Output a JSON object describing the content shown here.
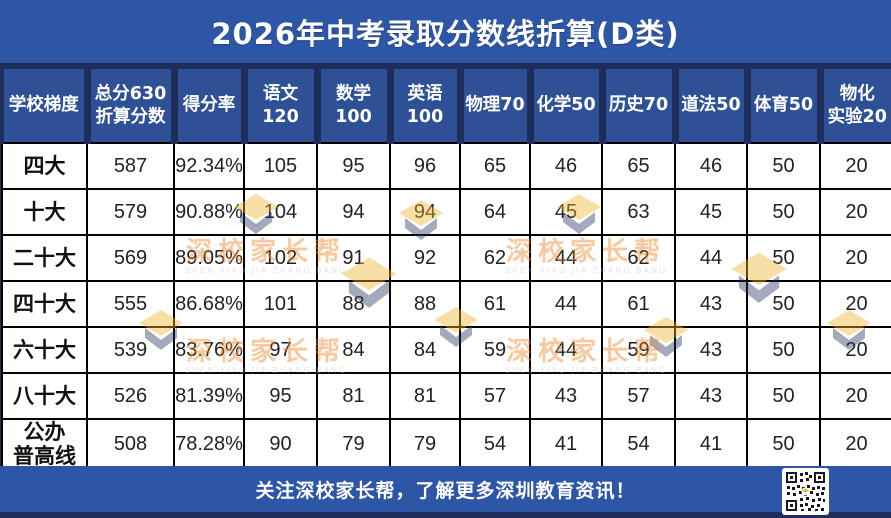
{
  "title": "2026年中考录取分数线折算(D类)",
  "table": {
    "columns": [
      "学校梯度",
      "总分630\n折算分数",
      "得分率",
      "语文\n120",
      "数学\n100",
      "英语\n100",
      "物理70",
      "化学50",
      "历史70",
      "道法50",
      "体育50",
      "物化\n实验20"
    ],
    "rows": [
      {
        "label": "四大",
        "values": [
          "587",
          "92.34%",
          "105",
          "95",
          "96",
          "65",
          "46",
          "65",
          "46",
          "50",
          "20"
        ]
      },
      {
        "label": "十大",
        "values": [
          "579",
          "90.88%",
          "104",
          "94",
          "94",
          "64",
          "45",
          "63",
          "45",
          "50",
          "20"
        ]
      },
      {
        "label": "二十大",
        "values": [
          "569",
          "89.05%",
          "102",
          "91",
          "92",
          "62",
          "44",
          "62",
          "44",
          "50",
          "20"
        ]
      },
      {
        "label": "四十大",
        "values": [
          "555",
          "86.68%",
          "101",
          "88",
          "88",
          "61",
          "44",
          "61",
          "43",
          "50",
          "20"
        ]
      },
      {
        "label": "六十大",
        "values": [
          "539",
          "83.76%",
          "97",
          "84",
          "84",
          "59",
          "44",
          "59",
          "43",
          "50",
          "20"
        ]
      },
      {
        "label": "八十大",
        "values": [
          "526",
          "81.39%",
          "95",
          "81",
          "81",
          "57",
          "43",
          "57",
          "43",
          "50",
          "20"
        ]
      },
      {
        "label": "公办\n普高线",
        "values": [
          "508",
          "78.28%",
          "90",
          "79",
          "79",
          "54",
          "41",
          "54",
          "41",
          "50",
          "20"
        ]
      }
    ]
  },
  "watermark": {
    "text": "深校家长帮",
    "subtext": "SHEN XIAO JIA ZHANG BANG"
  },
  "footer": {
    "text": "关注深校家长帮，了解更多深圳教育资讯！",
    "qr_icon": "qr-code"
  },
  "colors": {
    "title_bar": "#2e56a6",
    "header_cell": "#2d5097",
    "frame_navy": "#1f2d5a",
    "body_bg": "#ffffff",
    "grid_line": "#000000",
    "footer_bar": "#2e56a6",
    "watermark_gold": "#f0b42a",
    "watermark_orange": "#f08a2b"
  }
}
